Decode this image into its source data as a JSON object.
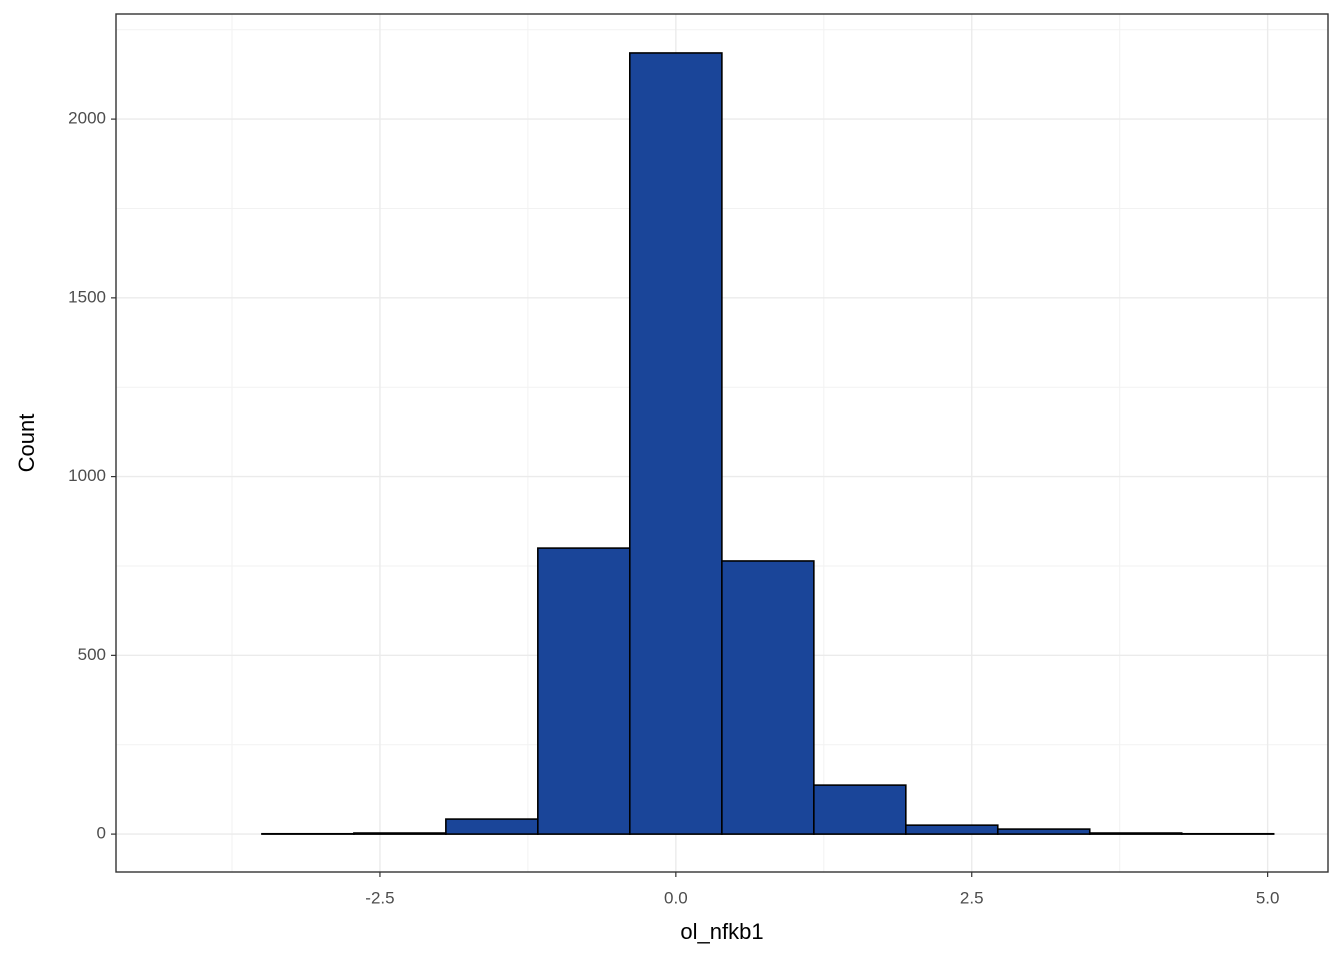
{
  "chart_data": {
    "type": "histogram",
    "x_label": "ol_nfkb1",
    "y_label": "Count",
    "bins": [
      -4.274,
      -3.497,
      -2.72,
      -1.943,
      -1.166,
      -0.389,
      0.389,
      1.166,
      1.943,
      2.72,
      3.497,
      4.274,
      5.051
    ],
    "values": [
      0,
      1,
      3,
      42,
      800,
      2185,
      764,
      137,
      25,
      14,
      3,
      1
    ],
    "color": "#1a4599",
    "edge_color": "#000000",
    "xlim": [
      -4.73,
      5.51
    ],
    "ylim": [
      -106,
      2294
    ],
    "xticks": [
      -2.5,
      {
        "value": 0,
        "label": "0.0"
      },
      2.5,
      {
        "value": 5,
        "label": "5.0"
      }
    ],
    "yticks": [
      0,
      500,
      1000,
      1500,
      2000
    ],
    "grid": true
  }
}
